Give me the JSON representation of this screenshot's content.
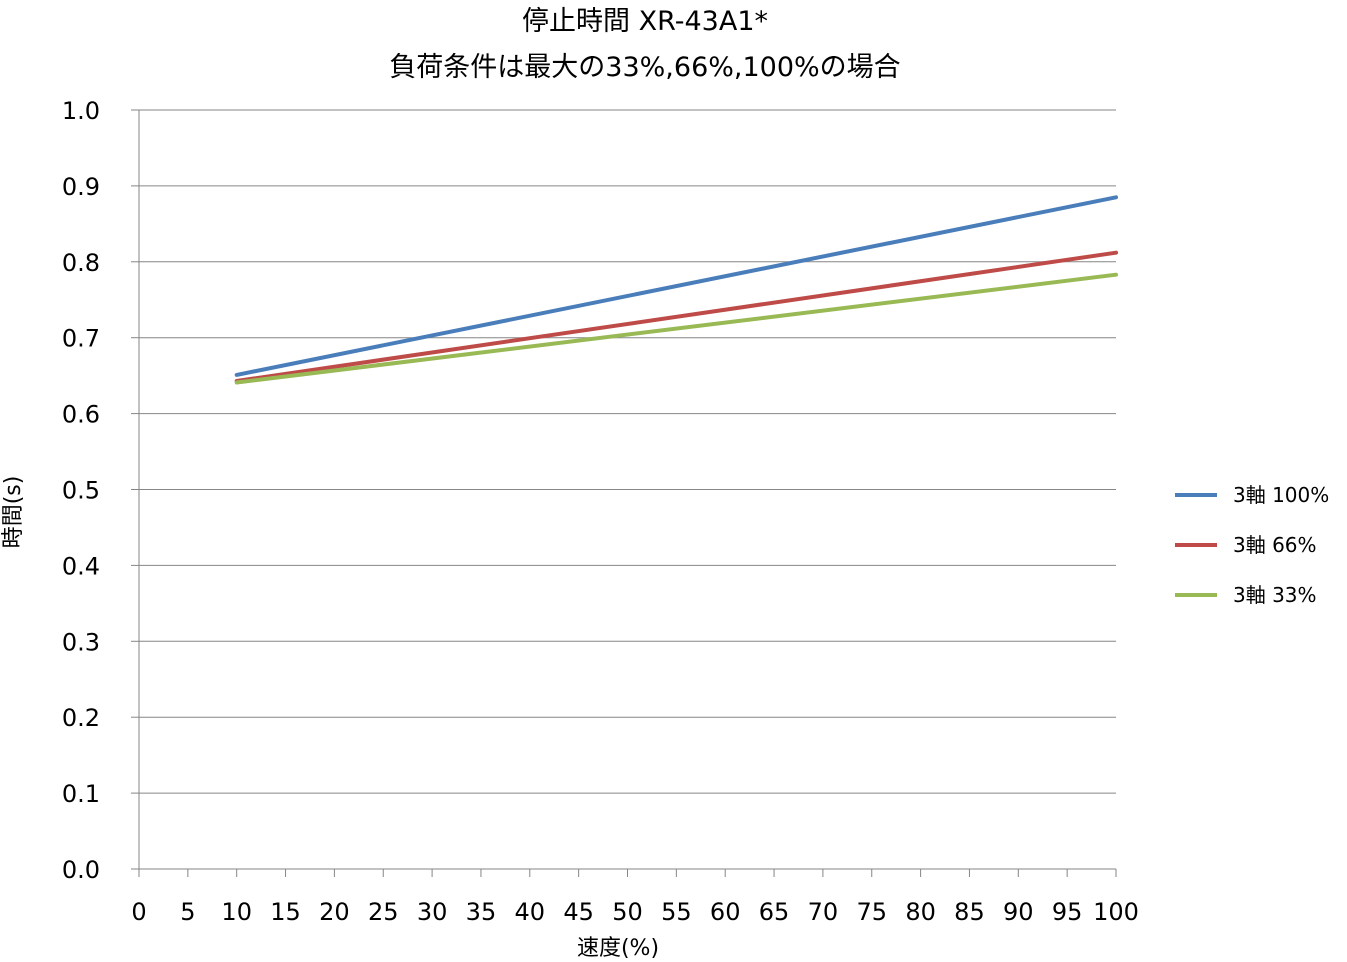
{
  "chart_data": {
    "type": "line",
    "title": "停止時間 XR-43A1*",
    "subtitle": "負荷条件は最大の33%,66%,100%の場合",
    "xlabel": "速度(%)",
    "ylabel": "時間(s)",
    "xlim": [
      0,
      100
    ],
    "ylim": [
      0,
      1.0
    ],
    "x_ticks": [
      "0",
      "5",
      "10",
      "15",
      "20",
      "25",
      "30",
      "35",
      "40",
      "45",
      "50",
      "55",
      "60",
      "65",
      "70",
      "75",
      "80",
      "85",
      "90",
      "95",
      "100"
    ],
    "y_ticks": [
      "0.0",
      "0.1",
      "0.2",
      "0.3",
      "0.4",
      "0.5",
      "0.6",
      "0.7",
      "0.8",
      "0.9",
      "1.0"
    ],
    "grid": "horizontal",
    "legend_position": "right",
    "series": [
      {
        "name": "3軸 100%",
        "color": "#4A7EBB",
        "x": [
          10,
          100
        ],
        "y": [
          0.651,
          0.885
        ]
      },
      {
        "name": "3軸 66%",
        "color": "#BE4B48",
        "x": [
          10,
          100
        ],
        "y": [
          0.643,
          0.812
        ]
      },
      {
        "name": "3軸 33%",
        "color": "#98B954",
        "x": [
          10,
          100
        ],
        "y": [
          0.641,
          0.783
        ]
      }
    ]
  }
}
